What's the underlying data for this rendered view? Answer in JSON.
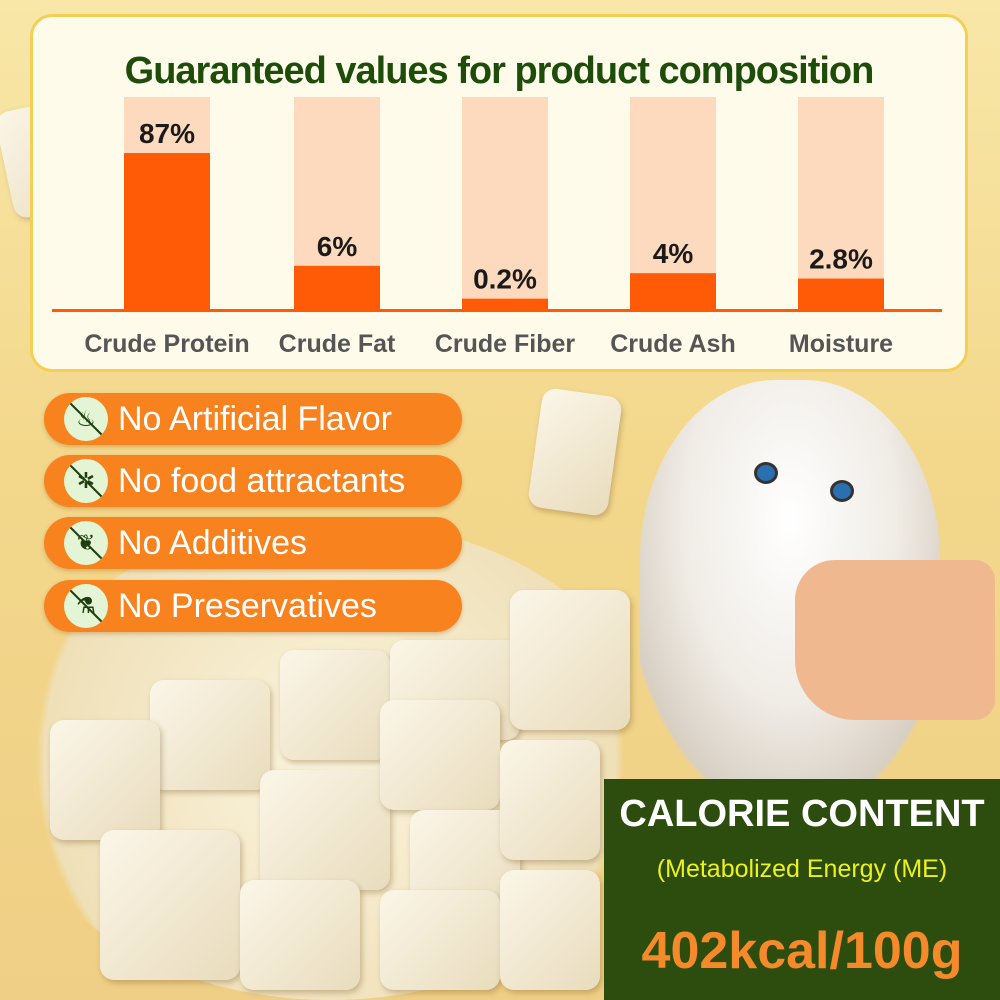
{
  "chart_data": {
    "type": "bar",
    "title": "Guaranteed values for product composition",
    "categories": [
      "Crude Protein",
      "Crude Fat",
      "Crude Fiber",
      "Crude Ash",
      "Moisture"
    ],
    "values": [
      87,
      6,
      0.2,
      4,
      2.8
    ],
    "value_labels": [
      "87%",
      "6%",
      "0.2%",
      "4%",
      "2.8%"
    ],
    "unit": "%",
    "colors": {
      "bar": "#ff5a05",
      "track": "#fdd9bd",
      "title": "#1e4d0b"
    }
  },
  "features": [
    {
      "label": "No Artificial Flavor",
      "icon": "no-smell-icon"
    },
    {
      "label": "No food attractants",
      "icon": "no-attractant-icon"
    },
    {
      "label": "No Additives",
      "icon": "no-additives-icon"
    },
    {
      "label": "No Preservatives",
      "icon": "no-chemical-flask-icon"
    }
  ],
  "calorie": {
    "heading": "CALORIE CONTENT",
    "subheading": "(Metabolized Energy (ME)",
    "value": "402kcal/100g"
  }
}
